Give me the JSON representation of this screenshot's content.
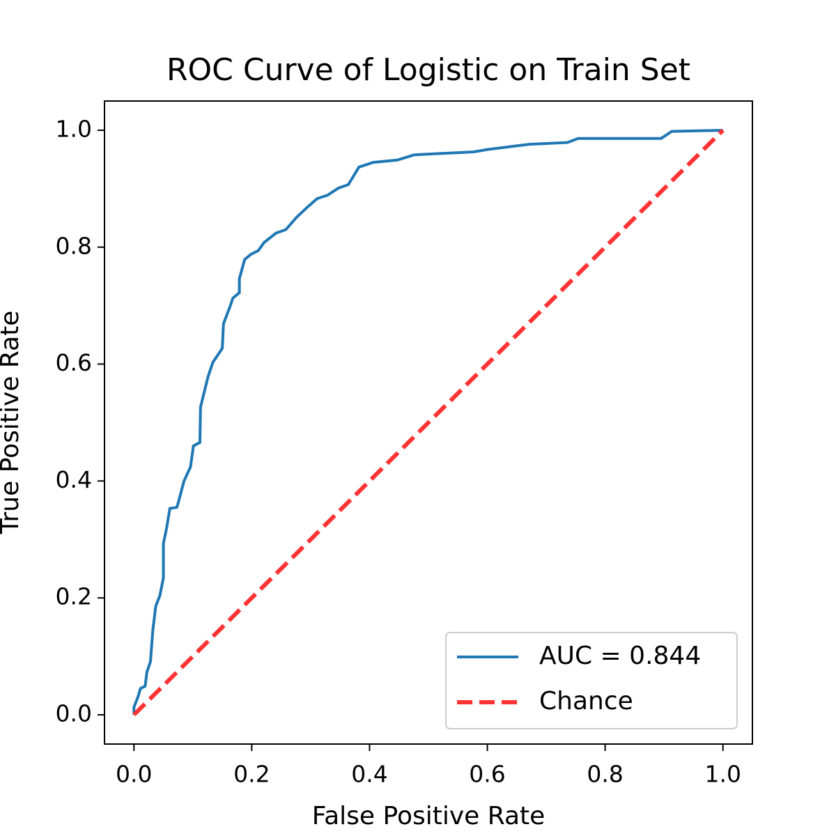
{
  "chart_data": {
    "type": "line",
    "title": "ROC Curve of Logistic on Train Set",
    "xlabel": "False Positive Rate",
    "ylabel": "True Positive Rate",
    "xlim": [
      -0.05,
      1.05
    ],
    "ylim": [
      -0.05,
      1.05
    ],
    "xticks": [
      {
        "value": 0,
        "label": "0.0"
      },
      0.2,
      0.4,
      0.6,
      0.8,
      {
        "value": 1,
        "label": "1.0"
      }
    ],
    "yticks": [
      {
        "value": 0,
        "label": "0.0"
      },
      0.2,
      0.4,
      0.6,
      0.8,
      {
        "value": 1,
        "label": "1.0"
      }
    ],
    "legend": "lower right",
    "series": [
      {
        "name": "AUC = 0.844",
        "color": "#1f77b4",
        "dashed": false,
        "x": [
          0,
          0,
          0.007,
          0.011,
          0.019,
          0.022,
          0.028,
          0.032,
          0.037,
          0.044,
          0.05,
          0.05,
          0.055,
          0.061,
          0.073,
          0.079,
          0.085,
          0.096,
          0.101,
          0.112,
          0.113,
          0.12,
          0.126,
          0.134,
          0.15,
          0.152,
          0.163,
          0.168,
          0.179,
          0.179,
          0.188,
          0.199,
          0.211,
          0.221,
          0.241,
          0.258,
          0.276,
          0.294,
          0.311,
          0.329,
          0.347,
          0.364,
          0.382,
          0.406,
          0.447,
          0.476,
          0.577,
          0.6,
          0.647,
          0.671,
          0.736,
          0.754,
          0.895,
          0.913,
          1
        ],
        "values": [
          0,
          0.013,
          0.031,
          0.045,
          0.049,
          0.073,
          0.091,
          0.144,
          0.186,
          0.204,
          0.234,
          0.293,
          0.317,
          0.353,
          0.355,
          0.377,
          0.4,
          0.424,
          0.46,
          0.466,
          0.526,
          0.555,
          0.579,
          0.603,
          0.627,
          0.669,
          0.698,
          0.713,
          0.722,
          0.746,
          0.779,
          0.788,
          0.794,
          0.808,
          0.824,
          0.83,
          0.851,
          0.868,
          0.883,
          0.889,
          0.901,
          0.907,
          0.937,
          0.945,
          0.949,
          0.958,
          0.963,
          0.967,
          0.973,
          0.976,
          0.979,
          0.986,
          0.986,
          0.998,
          1
        ]
      },
      {
        "name": "Chance",
        "color": "#ff3333",
        "dashed": true,
        "x": [
          0,
          1
        ],
        "values": [
          0,
          1
        ]
      }
    ]
  }
}
